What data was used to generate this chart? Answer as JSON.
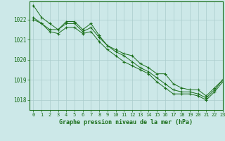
{
  "title": "Graphe pression niveau de la mer (hPa)",
  "bg_color": "#cce8e8",
  "grid_color": "#aacccc",
  "line_color": "#1a6e1a",
  "xlim": [
    -0.5,
    23
  ],
  "ylim": [
    1017.5,
    1022.9
  ],
  "xticks": [
    0,
    1,
    2,
    3,
    4,
    5,
    6,
    7,
    8,
    9,
    10,
    11,
    12,
    13,
    14,
    15,
    16,
    17,
    18,
    19,
    20,
    21,
    22,
    23
  ],
  "yticks": [
    1018,
    1019,
    1020,
    1021,
    1022
  ],
  "series": [
    [
      1022.7,
      1022.1,
      1021.8,
      1021.5,
      1021.9,
      1021.9,
      1021.5,
      1021.8,
      1021.2,
      1020.7,
      1020.5,
      1020.3,
      1020.2,
      1019.8,
      1019.6,
      1019.3,
      1019.3,
      1018.8,
      1018.6,
      1018.5,
      1018.5,
      1018.2,
      1018.6,
      1019.0
    ],
    [
      1022.1,
      1021.8,
      1021.5,
      1021.5,
      1021.8,
      1021.8,
      1021.4,
      1021.6,
      1021.1,
      1020.7,
      1020.4,
      1020.2,
      1019.9,
      1019.6,
      1019.4,
      1019.1,
      1018.8,
      1018.5,
      1018.4,
      1018.4,
      1018.3,
      1018.1,
      1018.5,
      1019.0
    ],
    [
      1022.0,
      1021.8,
      1021.4,
      1021.3,
      1021.6,
      1021.6,
      1021.3,
      1021.4,
      1020.9,
      1020.5,
      1020.2,
      1019.9,
      1019.7,
      1019.5,
      1019.3,
      1018.9,
      1018.6,
      1018.3,
      1018.3,
      1018.3,
      1018.2,
      1018.0,
      1018.4,
      1018.9
    ]
  ]
}
